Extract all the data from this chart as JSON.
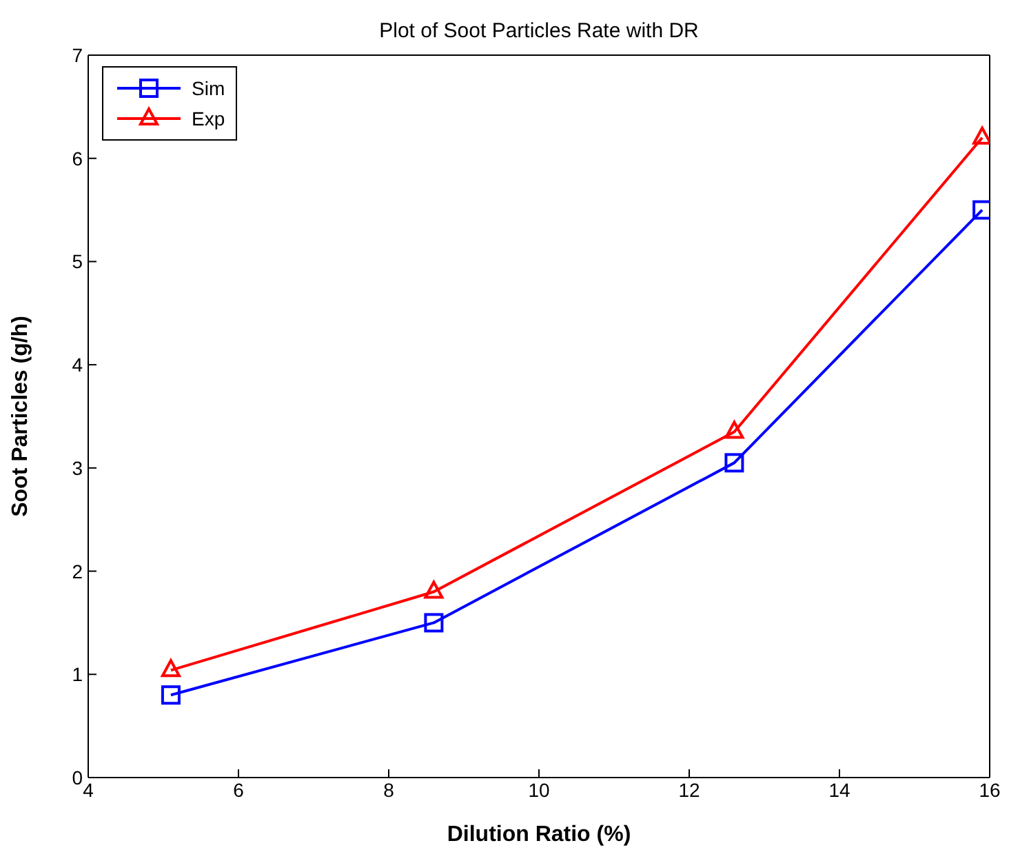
{
  "chart_data": {
    "type": "line",
    "title": "Plot of Soot Particles Rate with DR",
    "xlabel": "Dilution Ratio (%)",
    "ylabel": "Soot Particles (g/h)",
    "x": [
      5.1,
      8.6,
      12.6,
      15.9
    ],
    "series": [
      {
        "name": "Sim",
        "color": "#0000ff",
        "values": [
          0.8,
          1.5,
          3.05,
          5.5
        ],
        "marker": "square"
      },
      {
        "name": "Exp",
        "color": "#ff0000",
        "values": [
          1.04,
          1.8,
          3.35,
          6.2
        ],
        "marker": "triangle"
      }
    ],
    "xlim": [
      4,
      16
    ],
    "xticks": [
      4,
      6,
      8,
      10,
      12,
      14,
      16
    ],
    "ylim": [
      0,
      7
    ],
    "yticks": [
      0,
      1,
      2,
      3,
      4,
      5,
      6,
      7
    ],
    "legend": "top left",
    "line_style": "solid"
  }
}
